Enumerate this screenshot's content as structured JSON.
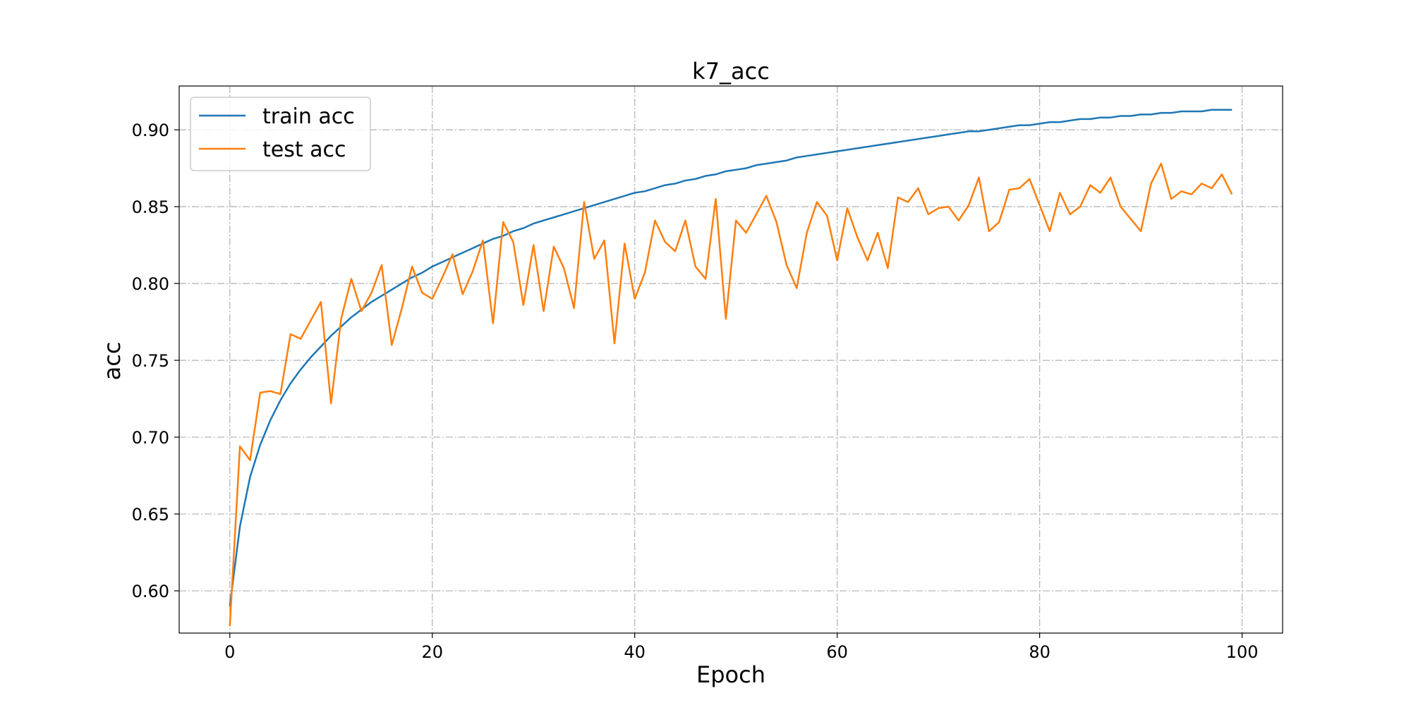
{
  "chart_data": {
    "type": "line",
    "title": "k7_acc",
    "xlabel": "Epoch",
    "ylabel": "acc",
    "xlim": [
      -5,
      104
    ],
    "ylim": [
      0.5725,
      0.9285
    ],
    "xticks": [
      0,
      20,
      40,
      60,
      80,
      100
    ],
    "yticks": [
      0.6,
      0.65,
      0.7,
      0.75,
      0.8,
      0.85,
      0.9
    ],
    "xtick_labels": [
      "0",
      "20",
      "40",
      "60",
      "80",
      "100"
    ],
    "ytick_labels": [
      "0.60",
      "0.65",
      "0.70",
      "0.75",
      "0.80",
      "0.85",
      "0.90"
    ],
    "grid": true,
    "legend_position": "upper-left",
    "x": [
      0,
      1,
      2,
      3,
      4,
      5,
      6,
      7,
      8,
      9,
      10,
      11,
      12,
      13,
      14,
      15,
      16,
      17,
      18,
      19,
      20,
      21,
      22,
      23,
      24,
      25,
      26,
      27,
      28,
      29,
      30,
      31,
      32,
      33,
      34,
      35,
      36,
      37,
      38,
      39,
      40,
      41,
      42,
      43,
      44,
      45,
      46,
      47,
      48,
      49,
      50,
      51,
      52,
      53,
      54,
      55,
      56,
      57,
      58,
      59,
      60,
      61,
      62,
      63,
      64,
      65,
      66,
      67,
      68,
      69,
      70,
      71,
      72,
      73,
      74,
      75,
      76,
      77,
      78,
      79,
      80,
      81,
      82,
      83,
      84,
      85,
      86,
      87,
      88,
      89,
      90,
      91,
      92,
      93,
      94,
      95,
      96,
      97,
      98,
      99
    ],
    "series": [
      {
        "name": "train acc",
        "color": "#1f77b4",
        "values": [
          0.59,
          0.642,
          0.674,
          0.695,
          0.711,
          0.724,
          0.735,
          0.744,
          0.752,
          0.759,
          0.766,
          0.772,
          0.778,
          0.783,
          0.788,
          0.792,
          0.796,
          0.8,
          0.804,
          0.807,
          0.811,
          0.814,
          0.817,
          0.82,
          0.823,
          0.826,
          0.829,
          0.831,
          0.834,
          0.836,
          0.839,
          0.841,
          0.843,
          0.845,
          0.847,
          0.849,
          0.851,
          0.853,
          0.855,
          0.857,
          0.859,
          0.86,
          0.862,
          0.864,
          0.865,
          0.867,
          0.868,
          0.87,
          0.871,
          0.873,
          0.874,
          0.875,
          0.877,
          0.878,
          0.879,
          0.88,
          0.882,
          0.883,
          0.884,
          0.885,
          0.886,
          0.887,
          0.888,
          0.889,
          0.89,
          0.891,
          0.892,
          0.893,
          0.894,
          0.895,
          0.896,
          0.897,
          0.898,
          0.899,
          0.899,
          0.9,
          0.901,
          0.902,
          0.903,
          0.903,
          0.904,
          0.905,
          0.905,
          0.906,
          0.907,
          0.907,
          0.908,
          0.908,
          0.909,
          0.909,
          0.91,
          0.91,
          0.911,
          0.911,
          0.912,
          0.912,
          0.912,
          0.913,
          0.913,
          0.913
        ]
      },
      {
        "name": "test acc",
        "color": "#ff7f0e",
        "values": [
          0.577,
          0.694,
          0.685,
          0.729,
          0.73,
          0.728,
          0.767,
          0.764,
          0.776,
          0.788,
          0.722,
          0.777,
          0.803,
          0.782,
          0.794,
          0.812,
          0.76,
          0.784,
          0.811,
          0.794,
          0.79,
          0.804,
          0.819,
          0.793,
          0.808,
          0.828,
          0.774,
          0.84,
          0.827,
          0.786,
          0.825,
          0.782,
          0.824,
          0.81,
          0.784,
          0.853,
          0.816,
          0.828,
          0.761,
          0.826,
          0.79,
          0.807,
          0.841,
          0.827,
          0.821,
          0.841,
          0.811,
          0.803,
          0.855,
          0.777,
          0.841,
          0.833,
          0.845,
          0.857,
          0.84,
          0.812,
          0.797,
          0.833,
          0.853,
          0.844,
          0.815,
          0.849,
          0.83,
          0.815,
          0.833,
          0.81,
          0.856,
          0.853,
          0.862,
          0.845,
          0.849,
          0.85,
          0.841,
          0.851,
          0.869,
          0.834,
          0.84,
          0.861,
          0.862,
          0.868,
          0.851,
          0.834,
          0.859,
          0.845,
          0.85,
          0.864,
          0.859,
          0.869,
          0.85,
          0.842,
          0.834,
          0.865,
          0.878,
          0.855,
          0.86,
          0.858,
          0.865,
          0.862,
          0.871,
          0.858
        ]
      }
    ]
  }
}
